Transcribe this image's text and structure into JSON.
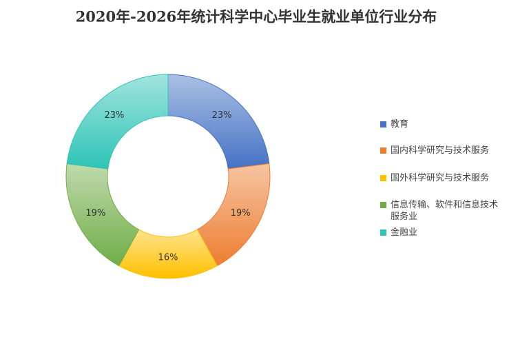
{
  "chart_data": {
    "type": "donut",
    "title": "2020年-2026年统计科学中心毕业生就业单位行业分布",
    "categories": [
      "教育",
      "国内科学研究与技术服务",
      "国外科学研究与技术服务",
      "信息传输、软件和信息技术服务业",
      "金融业"
    ],
    "values": [
      23,
      19,
      16,
      19,
      23
    ],
    "value_labels": [
      "23%",
      "19%",
      "16%",
      "19%",
      "23%"
    ],
    "colors": [
      "#4472c4",
      "#ed7d31",
      "#ffc000",
      "#70ad47",
      "#2ec4b6"
    ],
    "legend": "right"
  }
}
